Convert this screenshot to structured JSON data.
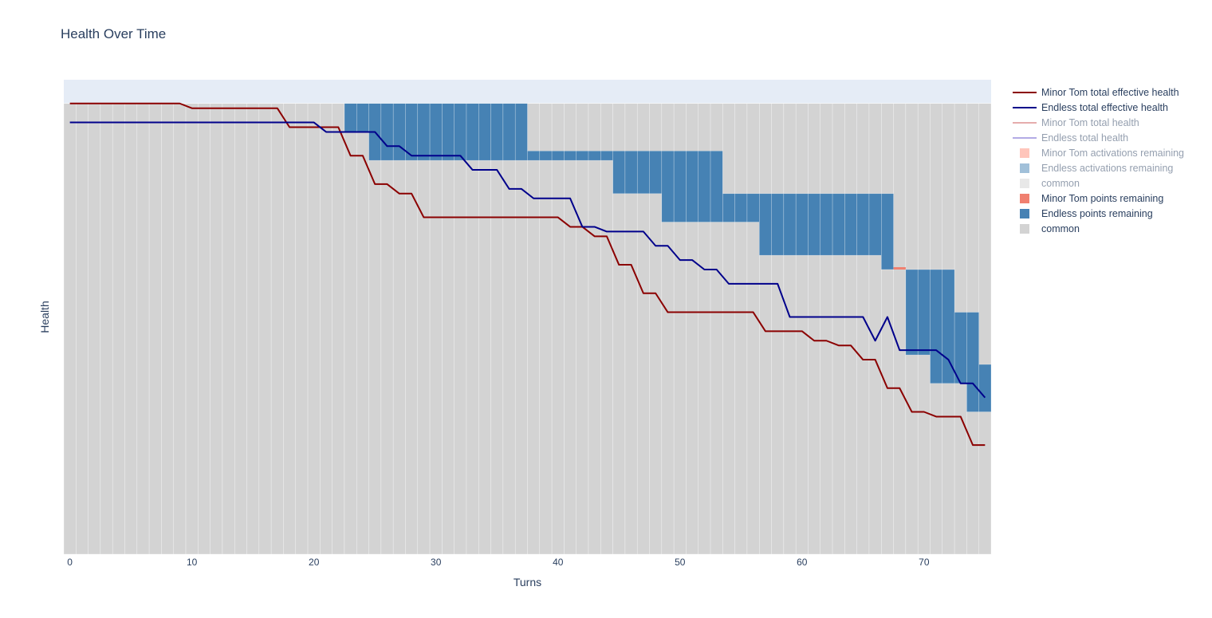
{
  "chart_data": {
    "type": "bar",
    "title": "Health Over Time",
    "xlabel": "Turns",
    "ylabel": "Health",
    "xlim": [
      -0.5,
      75.5
    ],
    "ylim": [
      0,
      100
    ],
    "x_ticks": [
      "0",
      "10",
      "20",
      "30",
      "40",
      "50",
      "60",
      "70"
    ],
    "grid": true,
    "legend_position": "right",
    "bars": {
      "x_range": [
        0,
        75
      ],
      "common_height": 95,
      "common_color": "#d3d3d3",
      "endless_color": "#4682b4",
      "minor_tom_color": "#f08070",
      "endless_points_segments": [
        {
          "x_start": 23,
          "x_end": 23,
          "bottom": 89,
          "top": 95
        },
        {
          "x_start": 24,
          "x_end": 24,
          "bottom": 89,
          "top": 95
        },
        {
          "x_start": 25,
          "x_end": 37,
          "bottom": 83,
          "top": 95
        },
        {
          "x_start": 38,
          "x_end": 44,
          "bottom": 83,
          "top": 85
        },
        {
          "x_start": 45,
          "x_end": 48,
          "bottom": 76,
          "top": 85
        },
        {
          "x_start": 49,
          "x_end": 53,
          "bottom": 70,
          "top": 85
        },
        {
          "x_start": 54,
          "x_end": 56,
          "bottom": 70,
          "top": 76
        },
        {
          "x_start": 57,
          "x_end": 66,
          "bottom": 63,
          "top": 76
        },
        {
          "x_start": 67,
          "x_end": 67,
          "bottom": 60,
          "top": 76
        },
        {
          "x_start": 69,
          "x_end": 70,
          "bottom": 42,
          "top": 60
        },
        {
          "x_start": 71,
          "x_end": 72,
          "bottom": 36,
          "top": 60
        },
        {
          "x_start": 73,
          "x_end": 73,
          "bottom": 36,
          "top": 51
        },
        {
          "x_start": 74,
          "x_end": 74,
          "bottom": 30,
          "top": 51
        },
        {
          "x_start": 75,
          "x_end": 75,
          "bottom": 30,
          "top": 40
        }
      ],
      "minor_tom_points_segments": [
        {
          "x_start": 68,
          "x_end": 68,
          "bottom": 60,
          "top": 60.5
        }
      ]
    },
    "series": [
      {
        "name": "Minor Tom total effective health",
        "color": "#8b0000",
        "y": [
          95,
          95,
          95,
          95,
          95,
          95,
          95,
          95,
          95,
          95,
          94,
          94,
          94,
          94,
          94,
          94,
          94,
          94,
          90,
          90,
          90,
          90,
          90,
          84,
          84,
          78,
          78,
          76,
          76,
          71,
          71,
          71,
          71,
          71,
          71,
          71,
          71,
          71,
          71,
          71,
          71,
          69,
          69,
          67,
          67,
          61,
          61,
          55,
          55,
          51,
          51,
          51,
          51,
          51,
          51,
          51,
          51,
          47,
          47,
          47,
          47,
          45,
          45,
          44,
          44,
          41,
          41,
          35,
          35,
          30,
          30,
          29,
          29,
          29,
          23,
          23
        ]
      },
      {
        "name": "Endless total effective health",
        "color": "#00008b",
        "y": [
          91,
          91,
          91,
          91,
          91,
          91,
          91,
          91,
          91,
          91,
          91,
          91,
          91,
          91,
          91,
          91,
          91,
          91,
          91,
          91,
          91,
          89,
          89,
          89,
          89,
          89,
          86,
          86,
          84,
          84,
          84,
          84,
          84,
          81,
          81,
          81,
          77,
          77,
          75,
          75,
          75,
          75,
          69,
          69,
          68,
          68,
          68,
          68,
          65,
          65,
          62,
          62,
          60,
          60,
          57,
          57,
          57,
          57,
          57,
          50,
          50,
          50,
          50,
          50,
          50,
          50,
          45,
          50,
          43,
          43,
          43,
          43,
          41,
          36,
          36,
          33
        ]
      },
      {
        "name": "Minor Tom total health",
        "color": "#cd5c5c",
        "y": []
      },
      {
        "name": "Endless total health",
        "color": "#6a5acd",
        "y": []
      }
    ],
    "legend": [
      {
        "label": "Minor Tom total effective health",
        "kind": "line",
        "color": "#8b0000",
        "dim": false
      },
      {
        "label": "Endless total effective health",
        "kind": "line",
        "color": "#00008b",
        "dim": false
      },
      {
        "label": "Minor Tom total health",
        "kind": "line",
        "color": "#cd5c5c",
        "dim": true
      },
      {
        "label": "Endless total health",
        "kind": "line",
        "color": "#6a5acd",
        "dim": true
      },
      {
        "label": "Minor Tom activations remaining",
        "kind": "box",
        "color": "#ff8c7a",
        "dim": true
      },
      {
        "label": "Endless activations remaining",
        "kind": "box",
        "color": "#4682b4",
        "dim": true
      },
      {
        "label": "common",
        "kind": "box",
        "color": "#d3d3d3",
        "dim": true
      },
      {
        "label": "Minor Tom points remaining",
        "kind": "box",
        "color": "#f08070",
        "dim": false
      },
      {
        "label": "Endless points remaining",
        "kind": "box",
        "color": "#4682b4",
        "dim": false
      },
      {
        "label": "common",
        "kind": "box",
        "color": "#d3d3d3",
        "dim": false
      }
    ]
  }
}
